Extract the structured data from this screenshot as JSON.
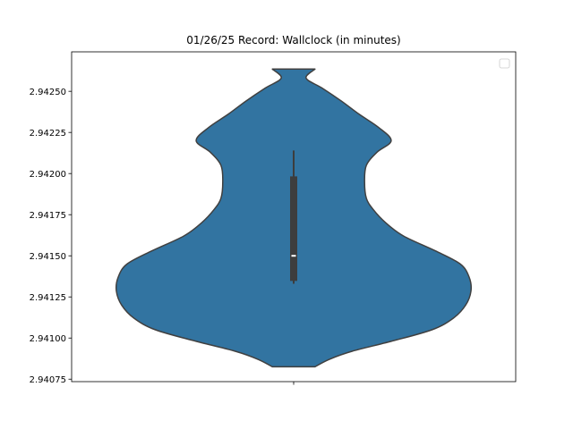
{
  "chart_data": {
    "type": "violin",
    "title": "01/26/25 Record: Wallclock (in minutes)",
    "xlabel": "",
    "ylabel": "",
    "y_ticks": [
      2.94075,
      2.941,
      2.94125,
      2.9415,
      2.94175,
      2.942,
      2.94225,
      2.9425
    ],
    "y_tick_labels": [
      "2.94075",
      "2.94100",
      "2.94125",
      "2.94150",
      "2.94175",
      "2.94200",
      "2.94225",
      "2.94250"
    ],
    "ylim": [
      2.940735,
      2.94274
    ],
    "violin": {
      "min": 2.940825,
      "max": 2.942635,
      "density_profile": [
        [
          2.940825,
          0.12
        ],
        [
          2.94087,
          0.2
        ],
        [
          2.94092,
          0.33
        ],
        [
          2.94098,
          0.55
        ],
        [
          2.94105,
          0.78
        ],
        [
          2.94112,
          0.9
        ],
        [
          2.9412,
          0.97
        ],
        [
          2.941285,
          1.0
        ],
        [
          2.94137,
          0.99
        ],
        [
          2.94145,
          0.94
        ],
        [
          2.94153,
          0.8
        ],
        [
          2.94162,
          0.62
        ],
        [
          2.9417,
          0.52
        ],
        [
          2.94178,
          0.45
        ],
        [
          2.94185,
          0.41
        ],
        [
          2.94195,
          0.4
        ],
        [
          2.94205,
          0.41
        ],
        [
          2.94213,
          0.47
        ],
        [
          2.9422,
          0.55
        ],
        [
          2.94228,
          0.48
        ],
        [
          2.94236,
          0.37
        ],
        [
          2.94244,
          0.27
        ],
        [
          2.94252,
          0.16
        ],
        [
          2.94258,
          0.07
        ],
        [
          2.942635,
          0.12
        ]
      ]
    },
    "box": {
      "whisker_low": 2.94133,
      "q1": 2.94135,
      "median": 2.9415,
      "q3": 2.94198,
      "whisker_high": 2.94214
    },
    "legend": {
      "position": "top-right",
      "entries": []
    },
    "colors": {
      "violin_fill": "#3274a1",
      "violin_edge": "#404040",
      "box": "#3d3d3d",
      "median": "#ffffff"
    },
    "grid": false
  }
}
